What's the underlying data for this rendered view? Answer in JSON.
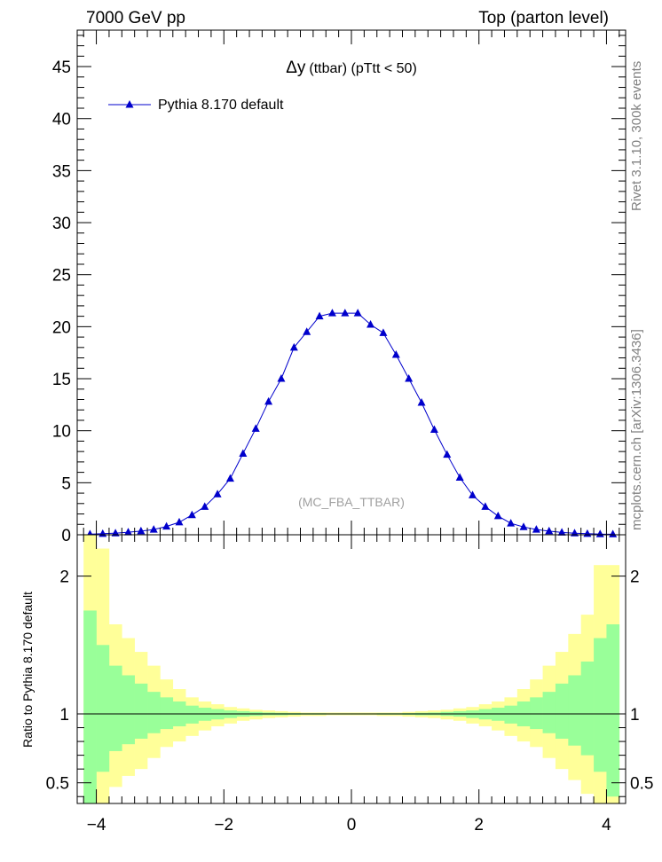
{
  "header": {
    "left": "7000 GeV pp",
    "right": "Top (parton level)"
  },
  "side_labels": {
    "rivet": "Rivet 3.1.10,  300k events",
    "mcplots": "mcplots.cern.ch [arXiv:1306.3436]"
  },
  "colors": {
    "series": "#0000cc",
    "band_outer": "#ffff99",
    "band_inner": "#99ff99",
    "axis": "#000000",
    "grey_text": "#808080"
  },
  "chart_data": [
    {
      "type": "line",
      "title": "Δy (ttbar) (pTtt < 50)",
      "title_symbol": "Δy",
      "title_rest": "(ttbar) (pTtt < 50)",
      "watermark": "(MC_FBA_TTBAR)",
      "xlim": [
        -4.3,
        4.3
      ],
      "ylim": [
        0,
        48.5
      ],
      "yticks": [
        0,
        5,
        10,
        15,
        20,
        25,
        30,
        35,
        40,
        45
      ],
      "ytick_labels": [
        "0",
        "5",
        "10",
        "15",
        "20",
        "25",
        "30",
        "35",
        "40",
        "45"
      ],
      "legend_position": "top-left",
      "series": [
        {
          "name": "Pythia 8.170 default",
          "marker": "triangle",
          "x": [
            -4.1,
            -3.9,
            -3.7,
            -3.5,
            -3.3,
            -3.1,
            -2.9,
            -2.7,
            -2.5,
            -2.3,
            -2.1,
            -1.9,
            -1.7,
            -1.5,
            -1.3,
            -1.1,
            -0.9,
            -0.7,
            -0.5,
            -0.3,
            -0.1,
            0.1,
            0.3,
            0.5,
            0.7,
            0.9,
            1.1,
            1.3,
            1.5,
            1.7,
            1.9,
            2.1,
            2.3,
            2.5,
            2.7,
            2.9,
            3.1,
            3.3,
            3.5,
            3.7,
            3.9,
            4.1
          ],
          "y": [
            0.05,
            0.1,
            0.15,
            0.25,
            0.35,
            0.5,
            0.8,
            1.2,
            1.9,
            2.7,
            3.9,
            5.4,
            7.8,
            10.2,
            12.8,
            15.0,
            18.0,
            19.5,
            21.0,
            21.3,
            21.3,
            21.3,
            20.2,
            19.4,
            17.3,
            15.0,
            12.7,
            10.1,
            7.7,
            5.5,
            3.8,
            2.7,
            1.8,
            1.1,
            0.75,
            0.5,
            0.35,
            0.22,
            0.15,
            0.1,
            0.06,
            0.05
          ]
        }
      ]
    },
    {
      "type": "area",
      "ylabel": "Ratio to Pythia 8.170 default",
      "xlim": [
        -4.3,
        4.3
      ],
      "ylim": [
        0.35,
        2.3
      ],
      "xticks": [
        -4,
        -2,
        0,
        2,
        4
      ],
      "xtick_labels": [
        "−4",
        "−2",
        "0",
        "2",
        "4"
      ],
      "yticks": [
        0.5,
        1,
        2
      ],
      "ytick_labels": [
        "0.5",
        "1",
        "2"
      ],
      "reference_line": 1,
      "bin_edges": [
        -4.2,
        -4.0,
        -3.8,
        -3.6,
        -3.4,
        -3.2,
        -3.0,
        -2.8,
        -2.6,
        -2.4,
        -2.2,
        -2.0,
        -1.8,
        -1.6,
        -1.4,
        -1.2,
        -1.0,
        -0.8,
        -0.6,
        -0.4,
        -0.2,
        0.0,
        0.2,
        0.4,
        0.6,
        0.8,
        1.0,
        1.2,
        1.4,
        1.6,
        1.8,
        2.0,
        2.2,
        2.4,
        2.6,
        2.8,
        3.0,
        3.2,
        3.4,
        3.6,
        3.8,
        4.0,
        4.2
      ],
      "bands": [
        {
          "name": "outer",
          "low": [
            0.3,
            0.3,
            0.47,
            0.55,
            0.6,
            0.68,
            0.76,
            0.8,
            0.84,
            0.88,
            0.91,
            0.93,
            0.95,
            0.96,
            0.97,
            0.975,
            0.98,
            0.985,
            0.985,
            0.99,
            0.99,
            0.99,
            0.99,
            0.985,
            0.985,
            0.98,
            0.975,
            0.97,
            0.96,
            0.95,
            0.93,
            0.91,
            0.88,
            0.84,
            0.8,
            0.76,
            0.68,
            0.6,
            0.52,
            0.42,
            0.33,
            0.3
          ],
          "high": [
            2.3,
            2.2,
            1.65,
            1.55,
            1.45,
            1.35,
            1.25,
            1.18,
            1.12,
            1.09,
            1.07,
            1.05,
            1.04,
            1.03,
            1.025,
            1.02,
            1.015,
            1.01,
            1.01,
            1.01,
            1.01,
            1.01,
            1.01,
            1.01,
            1.01,
            1.015,
            1.02,
            1.025,
            1.03,
            1.04,
            1.05,
            1.07,
            1.09,
            1.12,
            1.18,
            1.25,
            1.35,
            1.45,
            1.58,
            1.72,
            2.08,
            2.08
          ]
        },
        {
          "name": "inner",
          "low": [
            0.35,
            0.58,
            0.73,
            0.78,
            0.82,
            0.86,
            0.89,
            0.91,
            0.93,
            0.95,
            0.96,
            0.97,
            0.98,
            0.985,
            0.99,
            0.99,
            0.993,
            0.995,
            0.995,
            0.996,
            0.996,
            0.996,
            0.996,
            0.995,
            0.995,
            0.993,
            0.99,
            0.99,
            0.985,
            0.98,
            0.97,
            0.96,
            0.95,
            0.93,
            0.91,
            0.89,
            0.86,
            0.82,
            0.77,
            0.7,
            0.58,
            0.4
          ],
          "high": [
            1.75,
            1.5,
            1.35,
            1.28,
            1.22,
            1.16,
            1.12,
            1.09,
            1.06,
            1.045,
            1.035,
            1.025,
            1.02,
            1.015,
            1.01,
            1.008,
            1.006,
            1.005,
            1.005,
            1.004,
            1.004,
            1.004,
            1.004,
            1.005,
            1.005,
            1.006,
            1.008,
            1.01,
            1.015,
            1.02,
            1.025,
            1.035,
            1.045,
            1.06,
            1.09,
            1.12,
            1.16,
            1.22,
            1.28,
            1.38,
            1.55,
            1.65
          ]
        }
      ]
    }
  ]
}
